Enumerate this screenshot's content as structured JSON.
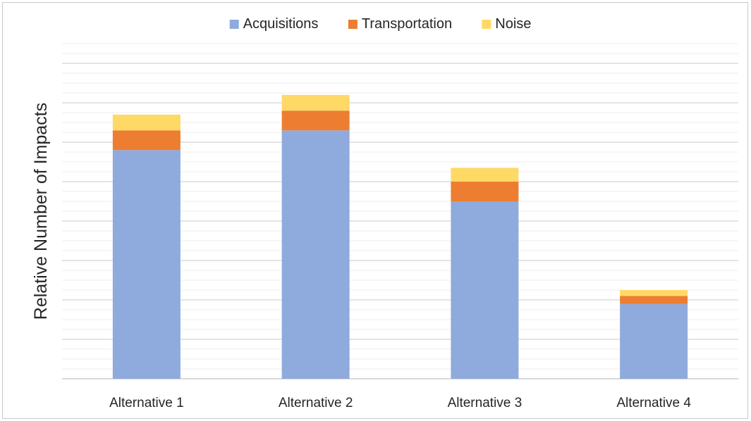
{
  "chart_data": {
    "type": "bar",
    "stacked": true,
    "title": "",
    "xlabel": "",
    "ylabel": "Relative Number of Impacts",
    "categories": [
      "Alternative 1",
      "Alternative 2",
      "Alternative 3",
      "Alternative 4"
    ],
    "series": [
      {
        "name": "Acquisitions",
        "color": "#8faadc",
        "values": [
          5.8,
          6.3,
          4.5,
          1.9
        ]
      },
      {
        "name": "Transportation",
        "color": "#ed7d31",
        "values": [
          0.5,
          0.5,
          0.5,
          0.2
        ]
      },
      {
        "name": "Noise",
        "color": "#ffd966",
        "values": [
          0.4,
          0.4,
          0.35,
          0.15
        ]
      }
    ],
    "ylim": [
      0,
      8.5
    ],
    "y_tick_labels_shown": false,
    "grid": true,
    "legend_position": "top"
  }
}
